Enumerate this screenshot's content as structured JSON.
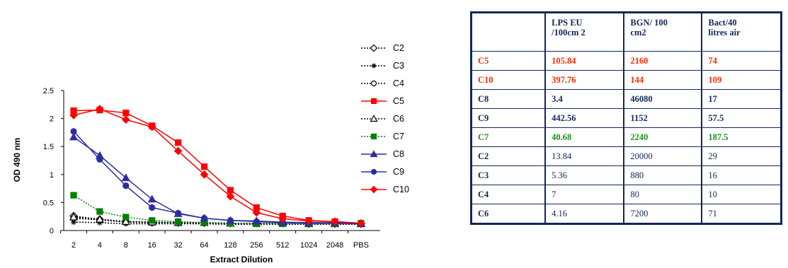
{
  "chart_data": {
    "type": "line",
    "xlabel": "Extract Dilution",
    "ylabel": "OD 490 nm",
    "categories": [
      "2",
      "4",
      "8",
      "16",
      "32",
      "64",
      "128",
      "256",
      "512",
      "1024",
      "2048",
      "PBS"
    ],
    "ylim": [
      0,
      2.5
    ],
    "yticks": [
      "0",
      "0.5",
      "1",
      "1.5",
      "2",
      "2.5"
    ],
    "series": [
      {
        "name": "C2",
        "color": "#000000",
        "style": "dotted",
        "marker": "diamond-open",
        "values": [
          0.26,
          0.2,
          0.16,
          0.15,
          0.14,
          0.14,
          0.13,
          0.13,
          0.13,
          0.12,
          0.12,
          0.12
        ]
      },
      {
        "name": "C3",
        "color": "#000000",
        "style": "dotted",
        "marker": "star",
        "values": [
          0.15,
          0.14,
          0.12,
          0.12,
          0.12,
          0.12,
          0.11,
          0.11,
          0.11,
          0.11,
          0.11,
          0.11
        ]
      },
      {
        "name": "C4",
        "color": "#000000",
        "style": "dotted",
        "marker": "circle-open",
        "values": [
          0.22,
          0.19,
          0.15,
          0.14,
          0.14,
          0.13,
          0.13,
          0.12,
          0.12,
          0.12,
          0.12,
          0.12
        ]
      },
      {
        "name": "C5",
        "color": "#ff0000",
        "style": "solid",
        "marker": "square",
        "values": [
          2.14,
          2.15,
          2.1,
          1.87,
          1.57,
          1.14,
          0.72,
          0.41,
          0.26,
          0.18,
          0.16,
          0.13
        ]
      },
      {
        "name": "C6",
        "color": "#000000",
        "style": "dotted",
        "marker": "triangle-open",
        "values": [
          0.24,
          0.2,
          0.16,
          0.15,
          0.14,
          0.14,
          0.13,
          0.13,
          0.13,
          0.12,
          0.12,
          0.12
        ]
      },
      {
        "name": "C7",
        "color": "#008000",
        "style": "dotted",
        "marker": "square",
        "values": [
          0.63,
          0.34,
          0.24,
          0.18,
          0.16,
          0.14,
          0.13,
          0.12,
          0.12,
          0.12,
          0.12,
          0.13
        ]
      },
      {
        "name": "C8",
        "color": "#2d2d9f",
        "style": "solid",
        "marker": "triangle",
        "values": [
          1.67,
          1.34,
          0.94,
          0.56,
          0.3,
          0.22,
          0.18,
          0.17,
          0.15,
          0.14,
          0.14,
          0.13
        ]
      },
      {
        "name": "C9",
        "color": "#2d2d9f",
        "style": "solid",
        "marker": "circle",
        "values": [
          1.77,
          1.27,
          0.8,
          0.41,
          0.31,
          0.22,
          0.18,
          0.16,
          0.14,
          0.13,
          0.13,
          0.12
        ]
      },
      {
        "name": "C10",
        "color": "#ff0000",
        "style": "solid",
        "marker": "diamond",
        "values": [
          2.06,
          2.17,
          1.98,
          1.85,
          1.42,
          1.0,
          0.61,
          0.32,
          0.21,
          0.17,
          0.16,
          0.13
        ]
      }
    ]
  },
  "table": {
    "headers": [
      "",
      "LPS EU\n/100cm 2",
      "BGN/ 100\ncm2",
      "Bact/40\nlitres air"
    ],
    "rows": [
      {
        "cells": [
          "C5",
          "105.84",
          "2160",
          "74"
        ],
        "color": "#ff2a00",
        "bold": true
      },
      {
        "cells": [
          "C10",
          "397.76",
          "144",
          "109"
        ],
        "color": "#ff2a00",
        "bold": true
      },
      {
        "cells": [
          "C8",
          "3.4",
          "46080",
          "17"
        ],
        "color": "#10275c",
        "bold": true
      },
      {
        "cells": [
          "C9",
          "442.56",
          "1152",
          "57.5"
        ],
        "color": "#10275c",
        "bold": true
      },
      {
        "cells": [
          "C7",
          "40.68",
          "2240",
          "187.5"
        ],
        "color": "#1f8f1f",
        "bold": true
      },
      {
        "cells": [
          "C2",
          "13.84",
          "20000",
          "29"
        ],
        "color": "#10275c",
        "bold": false
      },
      {
        "cells": [
          "C3",
          "5.36",
          "880",
          "16"
        ],
        "color": "#10275c",
        "bold": false
      },
      {
        "cells": [
          "C4",
          "7",
          "80",
          "10"
        ],
        "color": "#10275c",
        "bold": false
      },
      {
        "cells": [
          "C6",
          "4.16",
          "7200",
          "71"
        ],
        "color": "#10275c",
        "bold": false
      }
    ]
  }
}
